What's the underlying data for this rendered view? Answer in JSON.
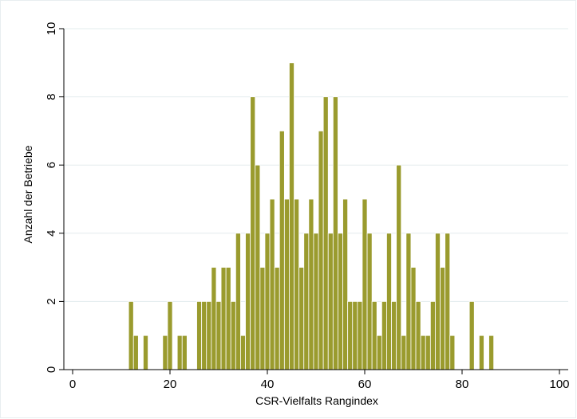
{
  "chart_data": {
    "type": "bar",
    "xlabel": "CSR-Vielfalts Rangindex",
    "ylabel": "Anzahl der Betriebe",
    "xlim": [
      0,
      100
    ],
    "ylim": [
      0,
      10
    ],
    "xticks": [
      0,
      20,
      40,
      60,
      80,
      100
    ],
    "yticks": [
      0,
      2,
      4,
      6,
      8,
      10
    ],
    "x_tick_labels": [
      "0",
      "20",
      "40",
      "60",
      "80",
      "100"
    ],
    "y_tick_labels": [
      "0",
      "2",
      "4",
      "6",
      "8",
      "10"
    ],
    "grid": "horizontal",
    "bar_color": "#9a9b2e",
    "bar_edge_color": "#ffffff",
    "background_color": "#ffffff",
    "gridline_color": "#e3ecee",
    "bin_width": 1,
    "x": [
      12,
      13,
      15,
      19,
      20,
      22,
      23,
      26,
      27,
      28,
      29,
      30,
      31,
      32,
      33,
      34,
      35,
      36,
      37,
      38,
      39,
      40,
      41,
      42,
      43,
      44,
      45,
      46,
      47,
      48,
      49,
      50,
      51,
      52,
      53,
      54,
      55,
      56,
      57,
      58,
      59,
      60,
      61,
      62,
      63,
      64,
      65,
      66,
      67,
      68,
      69,
      70,
      71,
      72,
      73,
      74,
      75,
      76,
      77,
      78,
      82,
      84,
      86
    ],
    "values": [
      2,
      1,
      1,
      1,
      2,
      1,
      1,
      2,
      2,
      2,
      3,
      2,
      3,
      3,
      2,
      4,
      1,
      4,
      8,
      6,
      3,
      4,
      5,
      3,
      7,
      5,
      9,
      5,
      3,
      4,
      5,
      4,
      7,
      8,
      4,
      8,
      4,
      5,
      2,
      2,
      2,
      5,
      4,
      2,
      1,
      2,
      4,
      2,
      6,
      1,
      4,
      3,
      2,
      1,
      1,
      2,
      4,
      3,
      4,
      1,
      2,
      1,
      1
    ]
  }
}
